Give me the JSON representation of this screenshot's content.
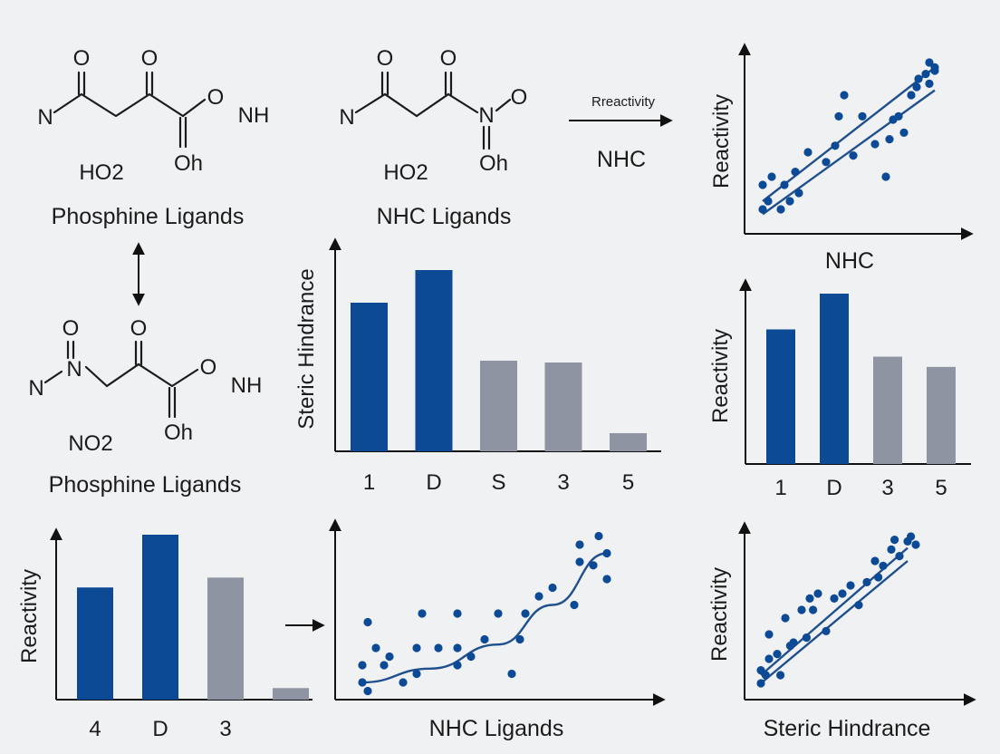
{
  "colors": {
    "background": "#f0f1f3",
    "primary_blue": "#0d4a96",
    "secondary_gray": "#8e94a2",
    "line_blue": "#1f4f8c",
    "ink": "#1b1b1b"
  },
  "molecules": [
    {
      "caption": "Phosphine Ligands",
      "atoms": {
        "n_left": "N",
        "o_top1": "O",
        "o_top2": "O",
        "o_right": "O",
        "nh": "NH",
        "below": "HO2",
        "oh": "Oh"
      }
    },
    {
      "caption": "NHC Ligands",
      "atoms": {
        "n_left": "N",
        "o_top1": "O",
        "o_top2": "O",
        "n_mid": "N",
        "o_right": "O",
        "below": "HO2",
        "oh": "Oh"
      }
    },
    {
      "caption": "Phosphine Ligands",
      "atoms": {
        "n_left": "N",
        "o_top1": "O",
        "n_mid": "N",
        "o_top2": "O",
        "o_right": "O",
        "nh": "NH",
        "below": "NO2",
        "oh": "Oh"
      }
    }
  ],
  "reaction_arrow": {
    "above": "Rreactivity",
    "below": "NHC"
  },
  "chart_data": [
    {
      "type": "scatter",
      "ylabel": "Reactivity",
      "xlabel": "NHC",
      "points": [
        [
          0.1,
          0.3
        ],
        [
          0.1,
          0.15
        ],
        [
          0.13,
          0.2
        ],
        [
          0.15,
          0.35
        ],
        [
          0.2,
          0.15
        ],
        [
          0.22,
          0.3
        ],
        [
          0.25,
          0.2
        ],
        [
          0.28,
          0.38
        ],
        [
          0.3,
          0.25
        ],
        [
          0.35,
          0.5
        ],
        [
          0.45,
          0.44
        ],
        [
          0.5,
          0.54
        ],
        [
          0.52,
          0.72
        ],
        [
          0.55,
          0.85
        ],
        [
          0.6,
          0.48
        ],
        [
          0.65,
          0.72
        ],
        [
          0.72,
          0.55
        ],
        [
          0.78,
          0.35
        ],
        [
          0.8,
          0.58
        ],
        [
          0.82,
          0.7
        ],
        [
          0.85,
          0.72
        ],
        [
          0.88,
          0.62
        ],
        [
          0.92,
          0.85
        ],
        [
          0.95,
          0.9
        ],
        [
          0.96,
          0.95
        ],
        [
          1.0,
          0.98
        ],
        [
          1.02,
          0.92
        ],
        [
          1.05,
          1.02
        ],
        [
          1.05,
          1.0
        ],
        [
          1.02,
          1.05
        ]
      ],
      "trend_lines": [
        [
          [
            0.1,
            0.12
          ],
          [
            1.05,
            0.88
          ]
        ],
        [
          [
            0.1,
            0.2
          ],
          [
            1.05,
            1.02
          ]
        ]
      ]
    },
    {
      "type": "bar",
      "ylabel": "Steric Hindrance",
      "categories": [
        "1",
        "D",
        "S",
        "3",
        "5"
      ],
      "values": [
        82,
        100,
        50,
        49,
        10
      ],
      "colors": [
        "blue",
        "blue",
        "gray",
        "gray",
        "gray"
      ]
    },
    {
      "type": "bar",
      "ylabel": "Reactivity",
      "categories": [
        "1",
        "D",
        "3",
        "5"
      ],
      "values": [
        79,
        100,
        63,
        57
      ],
      "colors": [
        "blue",
        "blue",
        "gray",
        "gray"
      ]
    },
    {
      "type": "bar",
      "ylabel": "Reactivity",
      "categories": [
        "4",
        "D",
        "3",
        ""
      ],
      "values": [
        68,
        100,
        74,
        7
      ],
      "colors": [
        "blue",
        "blue",
        "gray",
        "gray"
      ]
    },
    {
      "type": "scatter",
      "xlabel": "NHC Ligands",
      "points": [
        [
          0.1,
          0.1
        ],
        [
          0.12,
          0.05
        ],
        [
          0.1,
          0.2
        ],
        [
          0.12,
          0.45
        ],
        [
          0.15,
          0.3
        ],
        [
          0.18,
          0.2
        ],
        [
          0.2,
          0.25
        ],
        [
          0.25,
          0.1
        ],
        [
          0.3,
          0.15
        ],
        [
          0.3,
          0.3
        ],
        [
          0.32,
          0.5
        ],
        [
          0.38,
          0.3
        ],
        [
          0.45,
          0.2
        ],
        [
          0.45,
          0.3
        ],
        [
          0.45,
          0.5
        ],
        [
          0.5,
          0.25
        ],
        [
          0.55,
          0.35
        ],
        [
          0.6,
          0.5
        ],
        [
          0.65,
          0.15
        ],
        [
          0.68,
          0.35
        ],
        [
          0.7,
          0.5
        ],
        [
          0.75,
          0.6
        ],
        [
          0.8,
          0.65
        ],
        [
          0.88,
          0.55
        ],
        [
          0.9,
          0.8
        ],
        [
          0.9,
          0.9
        ],
        [
          0.95,
          0.78
        ],
        [
          0.97,
          0.95
        ],
        [
          1.0,
          0.7
        ],
        [
          1.0,
          0.85
        ]
      ],
      "curve": [
        [
          0.1,
          0.1
        ],
        [
          0.35,
          0.18
        ],
        [
          0.6,
          0.32
        ],
        [
          0.8,
          0.55
        ],
        [
          1.0,
          0.85
        ]
      ]
    },
    {
      "type": "scatter",
      "ylabel": "Reactivity",
      "xlabel": "Steric Hindrance",
      "points": [
        [
          0.1,
          0.18
        ],
        [
          0.1,
          0.1
        ],
        [
          0.13,
          0.15
        ],
        [
          0.15,
          0.25
        ],
        [
          0.15,
          0.4
        ],
        [
          0.2,
          0.28
        ],
        [
          0.22,
          0.15
        ],
        [
          0.25,
          0.5
        ],
        [
          0.28,
          0.33
        ],
        [
          0.3,
          0.35
        ],
        [
          0.35,
          0.55
        ],
        [
          0.38,
          0.38
        ],
        [
          0.4,
          0.62
        ],
        [
          0.42,
          0.55
        ],
        [
          0.45,
          0.65
        ],
        [
          0.5,
          0.42
        ],
        [
          0.55,
          0.62
        ],
        [
          0.6,
          0.65
        ],
        [
          0.65,
          0.7
        ],
        [
          0.7,
          0.58
        ],
        [
          0.75,
          0.72
        ],
        [
          0.8,
          0.85
        ],
        [
          0.82,
          0.75
        ],
        [
          0.85,
          0.82
        ],
        [
          0.9,
          0.92
        ],
        [
          0.92,
          0.98
        ],
        [
          0.95,
          0.88
        ],
        [
          1.0,
          0.97
        ],
        [
          1.02,
          1.0
        ],
        [
          1.05,
          0.95
        ]
      ],
      "trend_lines": [
        [
          [
            0.1,
            0.1
          ],
          [
            1.0,
            0.85
          ]
        ],
        [
          [
            0.1,
            0.15
          ],
          [
            1.0,
            0.93
          ]
        ]
      ]
    }
  ]
}
